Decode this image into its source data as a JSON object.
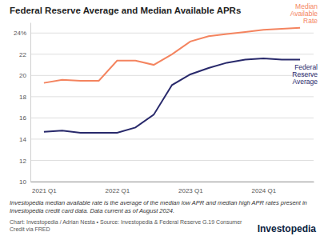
{
  "chart_data": {
    "type": "line",
    "title": "Federal Reserve Average and Median Available APRs",
    "categories": [
      "2021 Q1",
      null,
      null,
      null,
      "2022 Q1",
      null,
      null,
      null,
      "2023 Q1",
      null,
      null,
      null,
      "2024 Q1",
      null,
      null
    ],
    "series": [
      {
        "name": "Median Available Rate",
        "color": "#f4845f",
        "values": [
          19.3,
          19.6,
          19.5,
          19.5,
          21.4,
          21.4,
          21.0,
          22.0,
          23.2,
          23.7,
          23.9,
          24.1,
          24.3,
          24.4,
          24.5
        ]
      },
      {
        "name": "Federal Reserve Average",
        "color": "#28296b",
        "values": [
          14.7,
          14.8,
          14.6,
          14.6,
          14.6,
          15.1,
          16.3,
          19.1,
          20.1,
          20.7,
          21.2,
          21.5,
          21.6,
          21.5,
          21.5
        ]
      }
    ],
    "ylim": [
      10,
      25
    ],
    "yticks": [
      10,
      12,
      14,
      16,
      18,
      20,
      22,
      {
        "value": 24,
        "label": "24%"
      }
    ],
    "grid": true,
    "annotations": [
      "Investopedia median available rate is the average of the median low APR and median high APR rates present in Investopedia credit card data. Data current as of August 2024.",
      "Chart: Investopedia / Adrian Nesta • Source: Investopedia & Federal Reserve G.19 Consumer Credit via FRED",
      "Investopedia"
    ]
  }
}
